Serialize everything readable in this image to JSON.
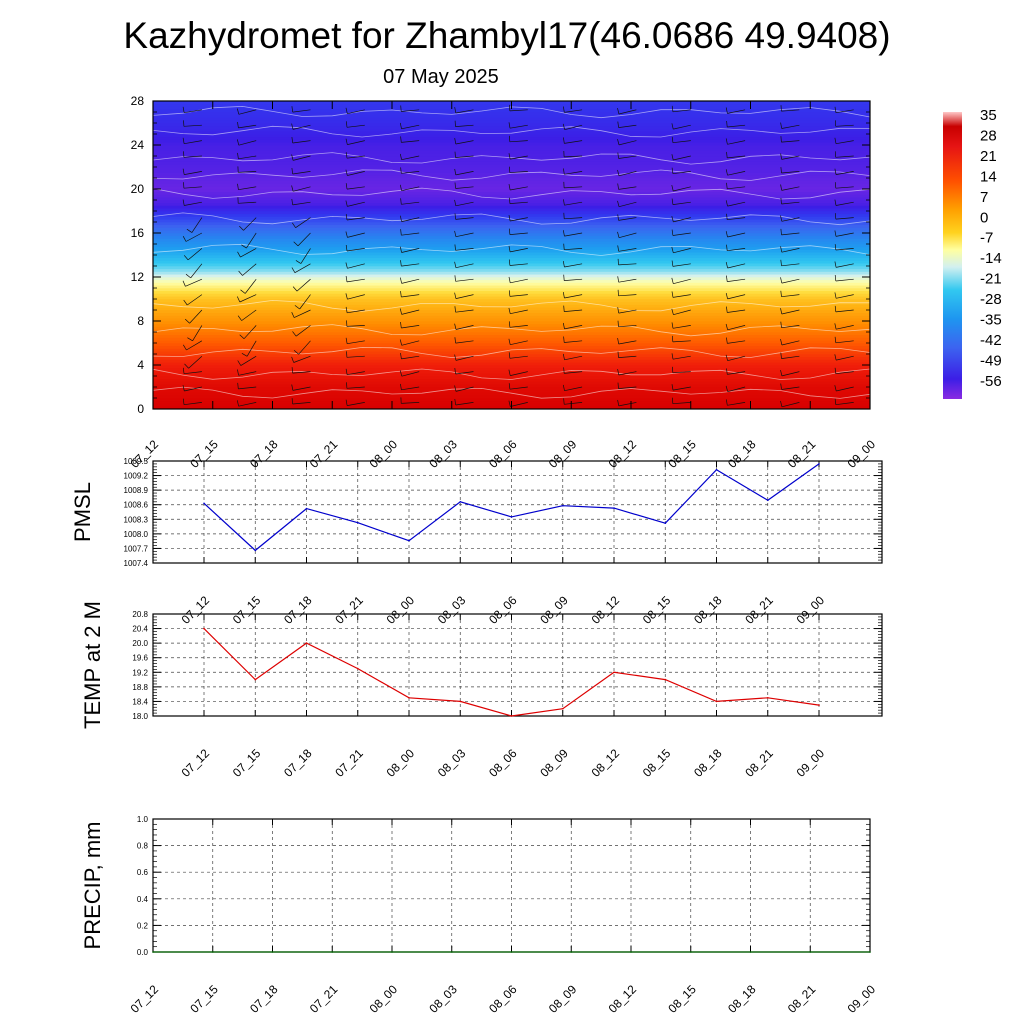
{
  "title": "Kazhydromet for Zhambyl17(46.0686 49.9408)",
  "subtitle": "07 May 2025",
  "chart_data": [
    {
      "type": "heatmap",
      "name": "temperature-wind-cross-section",
      "x_ticks": [
        "07_12",
        "07_15",
        "07_18",
        "07_21",
        "08_00",
        "08_03",
        "08_06",
        "08_09",
        "08_12",
        "08_15",
        "08_18",
        "08_21",
        "09_00"
      ],
      "y_ticks": [
        "0",
        "4",
        "8",
        "12",
        "16",
        "20",
        "24",
        "28"
      ],
      "ylim": [
        0,
        28
      ],
      "colorbar": {
        "labels": [
          "35",
          "28",
          "21",
          "14",
          "7",
          "0",
          "-7",
          "-14",
          "-21",
          "-28",
          "-35",
          "-42",
          "-49",
          "-56"
        ],
        "range": [
          -63,
          35
        ]
      },
      "profile": [
        {
          "y": 0,
          "t": 28
        },
        {
          "y": 2,
          "t": 26
        },
        {
          "y": 4,
          "t": 22
        },
        {
          "y": 6,
          "t": 16
        },
        {
          "y": 8,
          "t": 9
        },
        {
          "y": 10,
          "t": 2
        },
        {
          "y": 11.5,
          "t": -8
        },
        {
          "y": 12.5,
          "t": -17
        },
        {
          "y": 14,
          "t": -25
        },
        {
          "y": 15.5,
          "t": -34
        },
        {
          "y": 17,
          "t": -45
        },
        {
          "y": 18.5,
          "t": -57
        },
        {
          "y": 20,
          "t": -60
        },
        {
          "y": 22,
          "t": -58
        },
        {
          "y": 24,
          "t": -57
        },
        {
          "y": 26,
          "t": -53
        },
        {
          "y": 28,
          "t": -50
        }
      ],
      "wind_barbs": true,
      "grid": false
    },
    {
      "type": "line",
      "name": "pmsl",
      "ylabel": "PMSL",
      "categories": [
        "07_12",
        "07_15",
        "07_18",
        "07_21",
        "08_00",
        "08_03",
        "08_06",
        "08_09",
        "08_12",
        "08_15",
        "08_18",
        "08_21",
        "09_00"
      ],
      "values": [
        1008.63,
        1007.66,
        1008.52,
        1008.23,
        1007.86,
        1008.66,
        1008.35,
        1008.58,
        1008.53,
        1008.22,
        1009.32,
        1008.69,
        1009.44
      ],
      "ylim": [
        1007.4,
        1009.5
      ],
      "y_ticks": [
        "1007.4",
        "1007.7",
        "1008.0",
        "1008.3",
        "1008.6",
        "1008.9",
        "1009.2",
        "1009.5"
      ],
      "color": "#0000cc",
      "grid": true
    },
    {
      "type": "line",
      "name": "temp2m",
      "ylabel": "TEMP at 2 M",
      "categories": [
        "07_12",
        "07_15",
        "07_18",
        "07_21",
        "08_00",
        "08_03",
        "08_06",
        "08_09",
        "08_12",
        "08_15",
        "08_18",
        "08_21",
        "09_00"
      ],
      "values": [
        20.4,
        19.0,
        20.0,
        19.3,
        18.5,
        18.4,
        18.0,
        18.2,
        19.2,
        19.0,
        18.4,
        18.5,
        18.3
      ],
      "ylim": [
        18.0,
        20.8
      ],
      "y_ticks": [
        "18.0",
        "18.4",
        "18.8",
        "19.2",
        "19.6",
        "20.0",
        "20.4",
        "20.8"
      ],
      "color": "#dd0000",
      "grid": true
    },
    {
      "type": "line",
      "name": "precip",
      "ylabel": "PRECIP, mm",
      "categories": [
        "07_12",
        "07_15",
        "07_18",
        "07_21",
        "08_00",
        "08_03",
        "08_06",
        "08_09",
        "08_12",
        "08_15",
        "08_18",
        "08_21",
        "09_00"
      ],
      "values": [
        0,
        0,
        0,
        0,
        0,
        0,
        0,
        0,
        0,
        0,
        0,
        0,
        0
      ],
      "ylim": [
        0,
        1
      ],
      "y_ticks": [
        "0.0",
        "0.2",
        "0.4",
        "0.6",
        "0.8",
        "1.0"
      ],
      "color": "#006400",
      "grid": true
    }
  ]
}
